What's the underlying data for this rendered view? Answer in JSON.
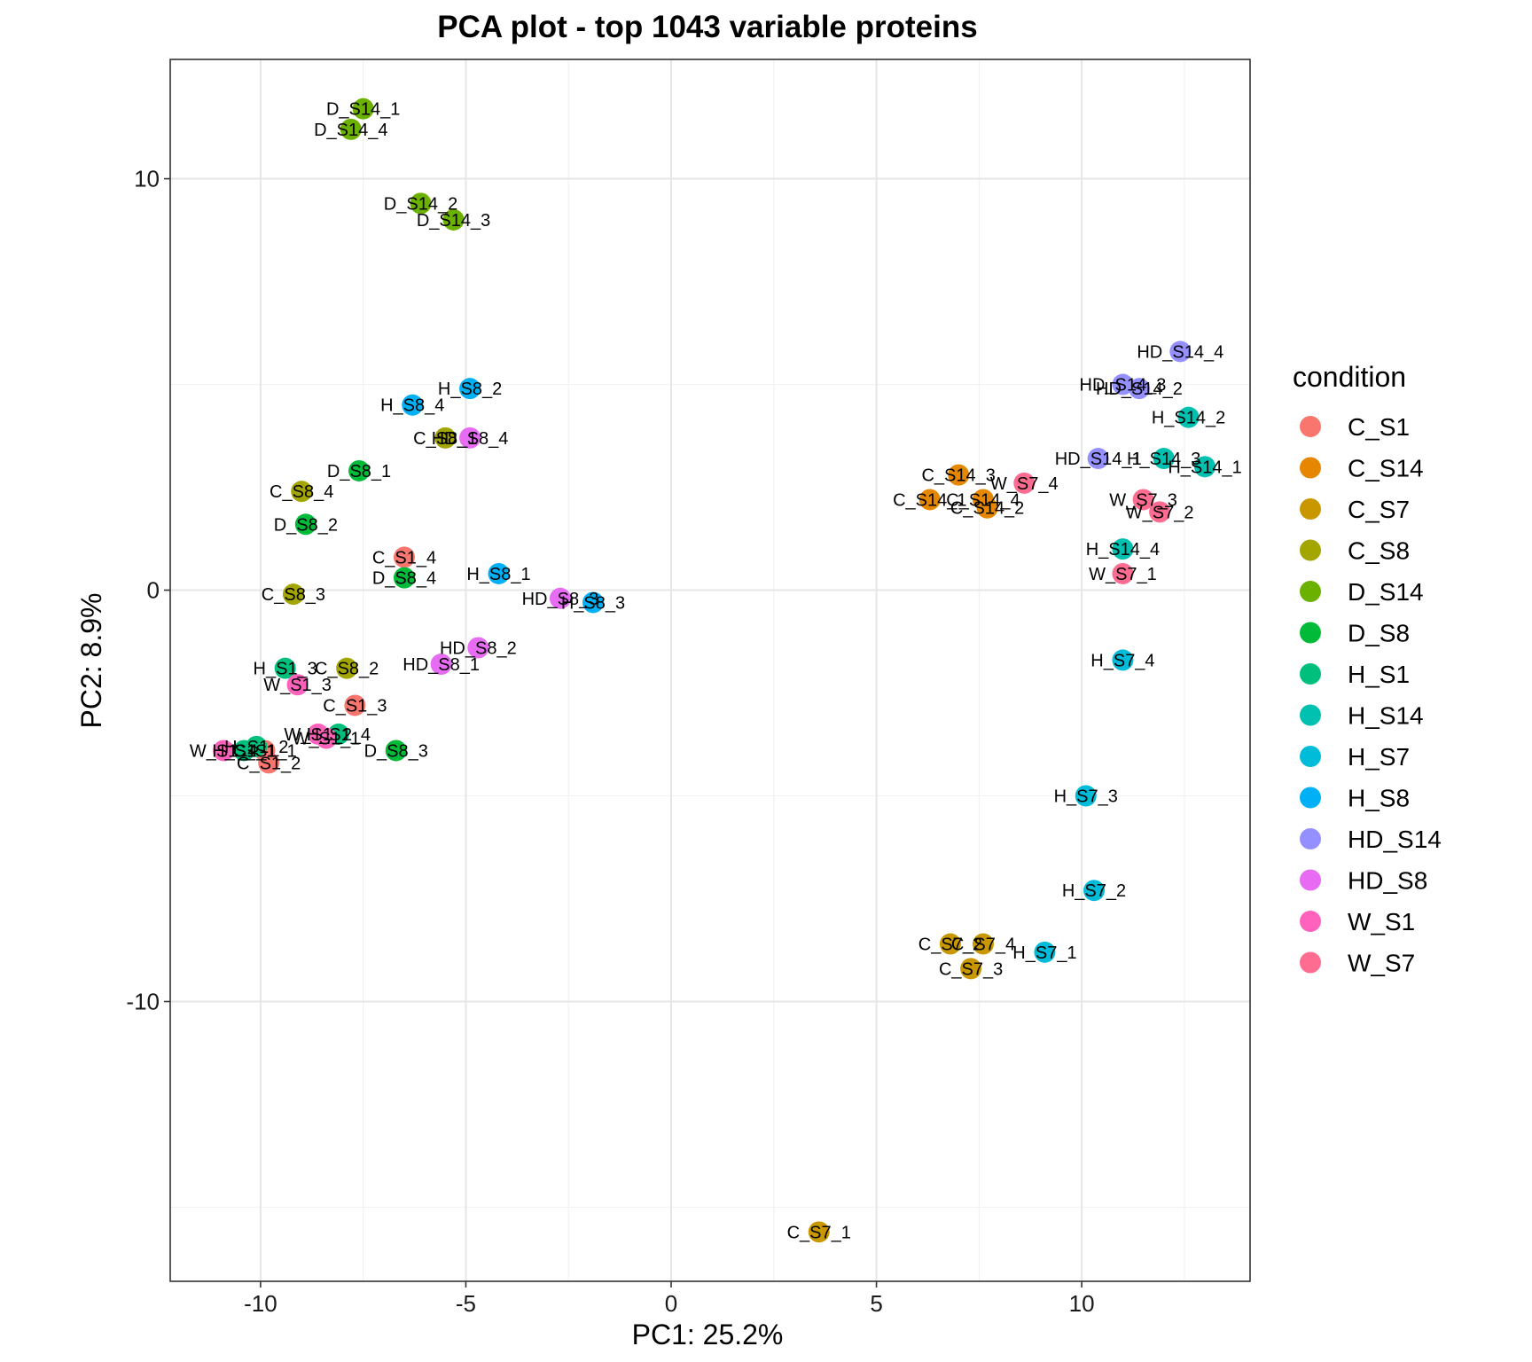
{
  "chart_data": {
    "type": "scatter",
    "title": "PCA plot - top 1043 variable proteins",
    "xlabel": "PC1: 25.2%",
    "ylabel": "PC2: 8.9%",
    "xlim": [
      -12.2,
      14.1
    ],
    "ylim": [
      -16.8,
      12.9
    ],
    "x_ticks": [
      -10,
      -5,
      0,
      5,
      10
    ],
    "y_ticks": [
      -10,
      0,
      10
    ],
    "x_tick_labels": [
      "-10",
      "-5",
      "0",
      "5",
      "10"
    ],
    "y_tick_labels": [
      "-10",
      "0",
      "10"
    ],
    "grid": true,
    "legend": {
      "title": "condition",
      "placement": "right",
      "entries": [
        "C_S1",
        "C_S14",
        "C_S7",
        "C_S8",
        "D_S14",
        "D_S8",
        "H_S1",
        "H_S14",
        "H_S7",
        "H_S8",
        "HD_S14",
        "HD_S8",
        "W_S1",
        "W_S7"
      ]
    },
    "colors": {
      "C_S1": "#F8766D",
      "C_S14": "#E58700",
      "C_S7": "#C99800",
      "C_S8": "#A3A500",
      "D_S14": "#6BB100",
      "D_S8": "#00BA38",
      "H_S1": "#00BF7D",
      "H_S14": "#00C0AF",
      "H_S7": "#00BCD8",
      "H_S8": "#00B0F6",
      "HD_S14": "#9590FF",
      "HD_S8": "#E76BF3",
      "W_S1": "#FF62BC",
      "W_S7": "#FF6C91"
    },
    "points": [
      {
        "label": "D_S14_1",
        "condition": "D_S14",
        "x": -7.5,
        "y": 11.7
      },
      {
        "label": "D_S14_4",
        "condition": "D_S14",
        "x": -7.8,
        "y": 11.2
      },
      {
        "label": "D_S14_2",
        "condition": "D_S14",
        "x": -6.1,
        "y": 9.4
      },
      {
        "label": "D_S14_3",
        "condition": "D_S14",
        "x": -5.3,
        "y": 9.0
      },
      {
        "label": "H_S8_2",
        "condition": "H_S8",
        "x": -4.9,
        "y": 4.9
      },
      {
        "label": "H_S8_4",
        "condition": "H_S8",
        "x": -6.3,
        "y": 4.5
      },
      {
        "label": "C_S8_1",
        "condition": "C_S8",
        "x": -5.5,
        "y": 3.7
      },
      {
        "label": "HD_S8_4",
        "condition": "HD_S8",
        "x": -4.9,
        "y": 3.7
      },
      {
        "label": "D_S8_1",
        "condition": "D_S8",
        "x": -7.6,
        "y": 2.9
      },
      {
        "label": "C_S8_4",
        "condition": "C_S8",
        "x": -9.0,
        "y": 2.4
      },
      {
        "label": "D_S8_2",
        "condition": "D_S8",
        "x": -8.9,
        "y": 1.6
      },
      {
        "label": "C_S1_4",
        "condition": "C_S1",
        "x": -6.5,
        "y": 0.8
      },
      {
        "label": "D_S8_4",
        "condition": "D_S8",
        "x": -6.5,
        "y": 0.3
      },
      {
        "label": "H_S8_1",
        "condition": "H_S8",
        "x": -4.2,
        "y": 0.4
      },
      {
        "label": "C_S8_3",
        "condition": "C_S8",
        "x": -9.2,
        "y": -0.1
      },
      {
        "label": "HD_S8_3",
        "condition": "HD_S8",
        "x": -2.7,
        "y": -0.2
      },
      {
        "label": "H_S8_3",
        "condition": "H_S8",
        "x": -1.9,
        "y": -0.3
      },
      {
        "label": "HD_S8_2",
        "condition": "HD_S8",
        "x": -4.7,
        "y": -1.4
      },
      {
        "label": "HD_S8_1",
        "condition": "HD_S8",
        "x": -5.6,
        "y": -1.8
      },
      {
        "label": "H_S1_3",
        "condition": "H_S1",
        "x": -9.4,
        "y": -1.9
      },
      {
        "label": "C_S8_2",
        "condition": "C_S8",
        "x": -7.9,
        "y": -1.9
      },
      {
        "label": "W_S1_3",
        "condition": "W_S1",
        "x": -9.1,
        "y": -2.3
      },
      {
        "label": "C_S1_3",
        "condition": "C_S1",
        "x": -7.7,
        "y": -2.8
      },
      {
        "label": "H_S1_4",
        "condition": "H_S1",
        "x": -8.1,
        "y": -3.5
      },
      {
        "label": "W_S1_2",
        "condition": "W_S1",
        "x": -8.6,
        "y": -3.5
      },
      {
        "label": "W_S1_1",
        "condition": "W_S1",
        "x": -8.4,
        "y": -3.6
      },
      {
        "label": "D_S8_3",
        "condition": "D_S8",
        "x": -6.7,
        "y": -3.9
      },
      {
        "label": "W_S1_4",
        "condition": "W_S1",
        "x": -10.9,
        "y": -3.9
      },
      {
        "label": "H_S1_1",
        "condition": "H_S1",
        "x": -10.4,
        "y": -3.9
      },
      {
        "label": "C_S1_1",
        "condition": "C_S1",
        "x": -9.9,
        "y": -3.9
      },
      {
        "label": "H_S1_2",
        "condition": "H_S1",
        "x": -10.1,
        "y": -3.8
      },
      {
        "label": "C_S1_2",
        "condition": "C_S1",
        "x": -9.8,
        "y": -4.2
      },
      {
        "label": "HD_S14_4",
        "condition": "HD_S14",
        "x": 12.4,
        "y": 5.8
      },
      {
        "label": "HD_S14_3",
        "condition": "HD_S14",
        "x": 11.0,
        "y": 5.0
      },
      {
        "label": "HD_S14_2",
        "condition": "HD_S14",
        "x": 11.4,
        "y": 4.9
      },
      {
        "label": "H_S14_2",
        "condition": "H_S14",
        "x": 12.6,
        "y": 4.2
      },
      {
        "label": "HD_S14_1",
        "condition": "HD_S14",
        "x": 10.4,
        "y": 3.2
      },
      {
        "label": "H_S14_3",
        "condition": "H_S14",
        "x": 12.0,
        "y": 3.2
      },
      {
        "label": "H_S14_1",
        "condition": "H_S14",
        "x": 13.0,
        "y": 3.0
      },
      {
        "label": "C_S14_3",
        "condition": "C_S14",
        "x": 7.0,
        "y": 2.8
      },
      {
        "label": "W_S7_4",
        "condition": "W_S7",
        "x": 8.6,
        "y": 2.6
      },
      {
        "label": "C_S14_1",
        "condition": "C_S14",
        "x": 6.3,
        "y": 2.2
      },
      {
        "label": "C_S14_4",
        "condition": "C_S14",
        "x": 7.6,
        "y": 2.2
      },
      {
        "label": "C_S14_2",
        "condition": "C_S14",
        "x": 7.7,
        "y": 2.0
      },
      {
        "label": "W_S7_3",
        "condition": "W_S7",
        "x": 11.5,
        "y": 2.2
      },
      {
        "label": "W_S7_2",
        "condition": "W_S7",
        "x": 11.9,
        "y": 1.9
      },
      {
        "label": "H_S14_4",
        "condition": "H_S14",
        "x": 11.0,
        "y": 1.0
      },
      {
        "label": "W_S7_1",
        "condition": "W_S7",
        "x": 11.0,
        "y": 0.4
      },
      {
        "label": "H_S7_4",
        "condition": "H_S7",
        "x": 11.0,
        "y": -1.7
      },
      {
        "label": "H_S7_3",
        "condition": "H_S7",
        "x": 10.1,
        "y": -5.0
      },
      {
        "label": "H_S7_2",
        "condition": "H_S7",
        "x": 10.3,
        "y": -7.3
      },
      {
        "label": "C_S7_2",
        "condition": "C_S7",
        "x": 6.8,
        "y": -8.6
      },
      {
        "label": "C_S7_4",
        "condition": "C_S7",
        "x": 7.6,
        "y": -8.6
      },
      {
        "label": "H_S7_1",
        "condition": "H_S7",
        "x": 9.1,
        "y": -8.8
      },
      {
        "label": "C_S7_3",
        "condition": "C_S7",
        "x": 7.3,
        "y": -9.2
      },
      {
        "label": "C_S7_1",
        "condition": "C_S7",
        "x": 3.6,
        "y": -15.6
      }
    ]
  }
}
